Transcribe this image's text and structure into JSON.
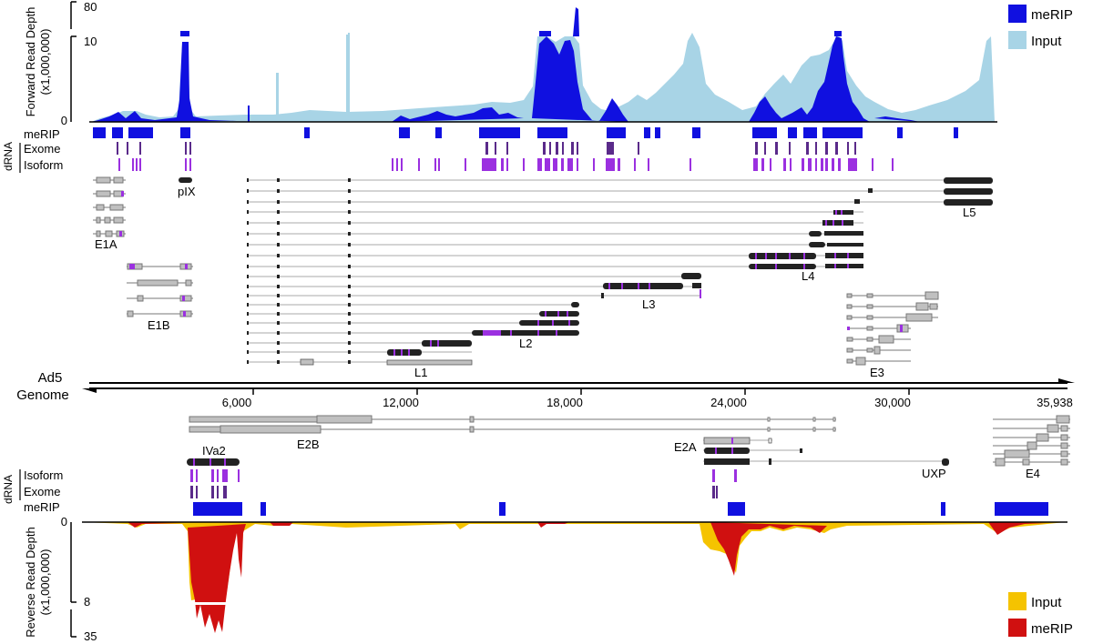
{
  "forward": {
    "axis_title_1": "Forward Read Depth",
    "axis_title_2": "(x1,000,000)",
    "ticks": [
      "80",
      "10",
      "0"
    ],
    "legend": [
      {
        "label": "meRIP",
        "color": "#1010e0"
      },
      {
        "label": "Input",
        "color": "#a8d4e6"
      }
    ],
    "tracks": {
      "dRNA": "dRNA",
      "meRIP": "meRIP",
      "exome": "Exome",
      "isoform": "Isoform"
    }
  },
  "reverse": {
    "axis_title_1": "Reverse Read Depth",
    "axis_title_2": "(x1,000,000)",
    "ticks": [
      "0",
      "8",
      "35"
    ],
    "legend": [
      {
        "label": "Input",
        "color": "#f5c300"
      },
      {
        "label": "meRIP",
        "color": "#d01010"
      }
    ],
    "tracks": {
      "dRNA": "dRNA",
      "isoform": "Isoform",
      "exome": "Exome",
      "meRIP": "meRIP"
    }
  },
  "genome": {
    "label_1": "Ad5",
    "label_2": "Genome",
    "ticks": [
      "6,000",
      "12,000",
      "18,000",
      "24,000",
      "30,000",
      "35,938"
    ]
  },
  "gene_labels": {
    "e1a": "E1A",
    "e1b": "E1B",
    "pix": "pIX",
    "l1": "L1",
    "l2": "L2",
    "l3": "L3",
    "l4": "L4",
    "l5": "L5",
    "e3": "E3",
    "e2b": "E2B",
    "iva2": "IVa2",
    "e2a": "E2A",
    "uxp": "UXP",
    "e4": "E4"
  },
  "colors": {
    "mrip_box": "#1010e0",
    "exome": "#5a2a8a",
    "isoform": "#9b30e0",
    "gray_exon": "#c0c0c0",
    "dark_exon": "#222222"
  }
}
